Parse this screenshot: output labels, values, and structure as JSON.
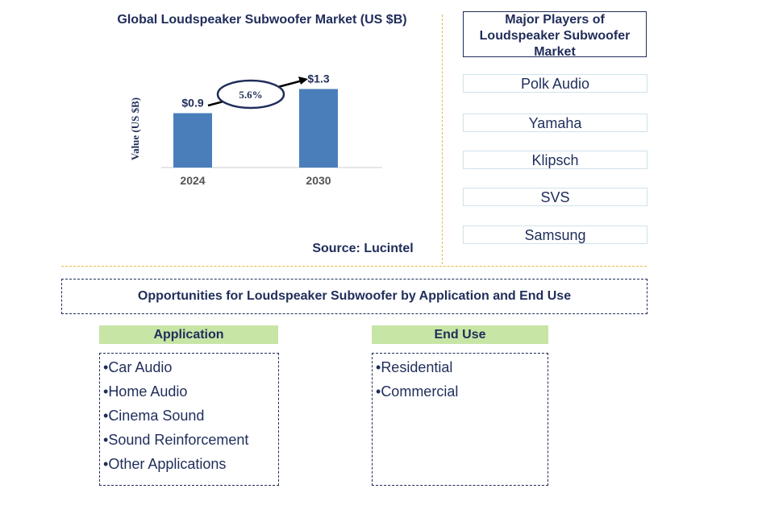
{
  "chart_data": {
    "type": "bar",
    "title": "Global Loudspeaker Subwoofer Market (US $B)",
    "ylabel": "Value (US $B)",
    "categories": [
      "2024",
      "2030"
    ],
    "values": [
      0.9,
      1.3
    ],
    "value_labels": [
      "$0.9",
      "$1.3"
    ],
    "ylim": [
      0,
      1.4
    ],
    "cagr_label": "5.6%",
    "bar_color": "#4a7ebb",
    "grid": false
  },
  "source": "Source: Lucintel",
  "players": {
    "heading": "Major Players of Loudspeaker Subwoofer Market",
    "items": [
      "Polk Audio",
      "Yamaha",
      "Klipsch",
      "SVS",
      "Samsung"
    ]
  },
  "opportunities": {
    "heading": "Opportunities for Loudspeaker Subwoofer by Application and End Use",
    "application": {
      "title": "Application",
      "items": [
        "Car Audio",
        "Home Audio",
        "Cinema Sound",
        "Sound Reinforcement",
        "Other Applications"
      ]
    },
    "end_use": {
      "title": "End Use",
      "items": [
        "Residential",
        "Commercial"
      ]
    }
  },
  "colors": {
    "navy": "#1f2d5a",
    "header_green": "#c7e5a5",
    "divider": "#e8b84a"
  }
}
